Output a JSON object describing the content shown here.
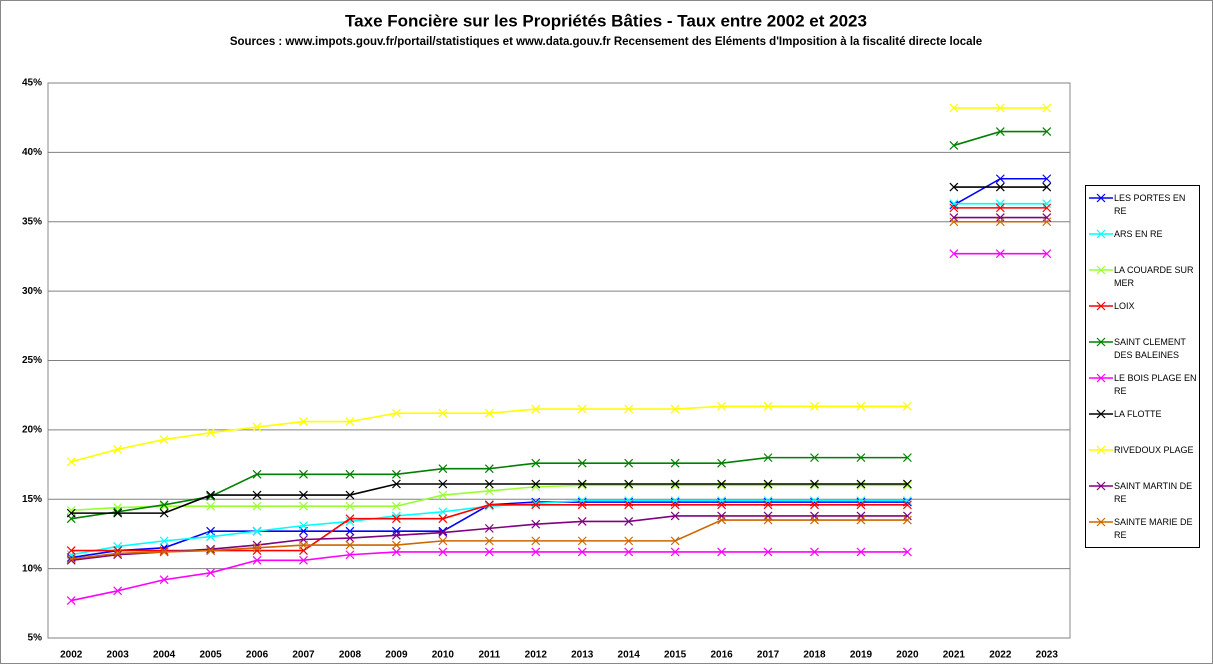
{
  "chart_data": {
    "type": "line",
    "title": "Taxe Foncière sur les Propriétés Bâties - Taux entre 2002 et 2023",
    "subtitle": "Sources : www.impots.gouv.fr/portail/statistiques et www.data.gouv.fr Recensement des Eléments d'Imposition à la fiscalité directe locale",
    "categories": [
      "2002",
      "2003",
      "2004",
      "2005",
      "2006",
      "2007",
      "2008",
      "2009",
      "2010",
      "2011",
      "2012",
      "2013",
      "2014",
      "2015",
      "2016",
      "2017",
      "2018",
      "2019",
      "2020",
      "2021",
      "2022",
      "2023"
    ],
    "line_break_before": "2021",
    "ylim": [
      5,
      45
    ],
    "yticks": [
      {
        "value": 5,
        "label": "5%"
      },
      {
        "value": 10,
        "label": "10%"
      },
      {
        "value": 15,
        "label": "15%"
      },
      {
        "value": 20,
        "label": "20%"
      },
      {
        "value": 25,
        "label": "25%"
      },
      {
        "value": 30,
        "label": "30%"
      },
      {
        "value": 35,
        "label": "35%"
      },
      {
        "value": 40,
        "label": "40%"
      },
      {
        "value": 45,
        "label": "45%"
      }
    ],
    "grid": true,
    "legend": "right",
    "series": [
      {
        "name": "LES PORTES EN RE",
        "color": "#0000ff",
        "values": [
          10.8,
          11.3,
          11.5,
          12.7,
          12.7,
          12.7,
          12.7,
          12.7,
          12.7,
          14.6,
          14.8,
          14.8,
          14.8,
          14.8,
          14.8,
          14.8,
          14.8,
          14.8,
          14.8,
          36.2,
          38.1,
          38.1
        ]
      },
      {
        "name": "ARS EN RE",
        "color": "#00ffff",
        "values": [
          11.0,
          11.6,
          12.0,
          12.3,
          12.7,
          13.1,
          13.4,
          13.8,
          14.1,
          14.5,
          14.7,
          14.9,
          14.9,
          14.9,
          14.9,
          14.9,
          14.9,
          14.9,
          14.9,
          36.3,
          36.3,
          36.3
        ]
      },
      {
        "name": "LA COUARDE SUR MER",
        "color": "#99ff33",
        "values": [
          14.2,
          14.4,
          14.5,
          14.5,
          14.5,
          14.5,
          14.5,
          14.5,
          15.3,
          15.6,
          15.9,
          16.0,
          16.0,
          16.0,
          16.0,
          16.0,
          16.0,
          16.0,
          16.0,
          null,
          null,
          null
        ]
      },
      {
        "name": "LOIX",
        "color": "#ff0000",
        "values": [
          11.3,
          11.3,
          11.3,
          11.3,
          11.3,
          11.3,
          13.6,
          13.6,
          13.6,
          14.6,
          14.6,
          14.6,
          14.6,
          14.6,
          14.6,
          14.6,
          14.6,
          14.6,
          14.6,
          36.0,
          36.0,
          36.0
        ]
      },
      {
        "name": "SAINT CLEMENT DES BALEINES",
        "color": "#008000",
        "values": [
          13.6,
          14.1,
          14.6,
          15.2,
          16.8,
          16.8,
          16.8,
          16.8,
          17.2,
          17.2,
          17.6,
          17.6,
          17.6,
          17.6,
          17.6,
          18.0,
          18.0,
          18.0,
          18.0,
          40.5,
          41.5,
          41.5
        ]
      },
      {
        "name": "LE BOIS PLAGE EN RE",
        "color": "#ff00ff",
        "values": [
          7.7,
          8.4,
          9.2,
          9.7,
          10.6,
          10.6,
          11.0,
          11.2,
          11.2,
          11.2,
          11.2,
          11.2,
          11.2,
          11.2,
          11.2,
          11.2,
          11.2,
          11.2,
          11.2,
          32.7,
          32.7,
          32.7
        ]
      },
      {
        "name": "LA FLOTTE",
        "color": "#000000",
        "values": [
          14.0,
          14.0,
          14.0,
          15.3,
          15.3,
          15.3,
          15.3,
          16.1,
          16.1,
          16.1,
          16.1,
          16.1,
          16.1,
          16.1,
          16.1,
          16.1,
          16.1,
          16.1,
          16.1,
          37.5,
          37.5,
          37.5
        ]
      },
      {
        "name": "RIVEDOUX PLAGE",
        "color": "#ffff00",
        "values": [
          17.7,
          18.6,
          19.3,
          19.8,
          20.2,
          20.6,
          20.6,
          21.2,
          21.2,
          21.2,
          21.5,
          21.5,
          21.5,
          21.5,
          21.7,
          21.7,
          21.7,
          21.7,
          21.7,
          43.2,
          43.2,
          43.2
        ]
      },
      {
        "name": "SAINT MARTIN DE RE",
        "color": "#800080",
        "values": [
          10.6,
          11.0,
          11.2,
          11.4,
          11.7,
          12.1,
          12.2,
          12.4,
          12.6,
          12.9,
          13.2,
          13.4,
          13.4,
          13.8,
          13.8,
          13.8,
          13.8,
          13.8,
          13.8,
          35.3,
          35.3,
          35.3
        ]
      },
      {
        "name": "SAINTE MARIE DE RE",
        "color": "#cc6600",
        "values": [
          10.7,
          11.1,
          11.2,
          11.3,
          11.5,
          11.7,
          11.7,
          11.7,
          12.0,
          12.0,
          12.0,
          12.0,
          12.0,
          12.0,
          13.5,
          13.5,
          13.5,
          13.5,
          13.5,
          35.0,
          35.0,
          35.0
        ]
      }
    ]
  }
}
